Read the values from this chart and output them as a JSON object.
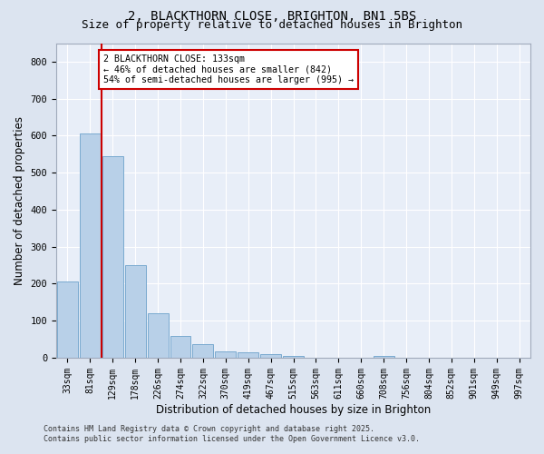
{
  "title1": "2, BLACKTHORN CLOSE, BRIGHTON, BN1 5BS",
  "title2": "Size of property relative to detached houses in Brighton",
  "xlabel": "Distribution of detached houses by size in Brighton",
  "ylabel": "Number of detached properties",
  "categories": [
    "33sqm",
    "81sqm",
    "129sqm",
    "178sqm",
    "226sqm",
    "274sqm",
    "322sqm",
    "370sqm",
    "419sqm",
    "467sqm",
    "515sqm",
    "563sqm",
    "611sqm",
    "660sqm",
    "708sqm",
    "756sqm",
    "804sqm",
    "852sqm",
    "901sqm",
    "949sqm",
    "997sqm"
  ],
  "values": [
    205,
    605,
    545,
    250,
    120,
    60,
    37,
    17,
    15,
    10,
    5,
    1,
    0,
    0,
    5,
    0,
    0,
    0,
    0,
    0,
    0
  ],
  "bar_color": "#b8d0e8",
  "bar_edge_color": "#7aaad0",
  "vline_x": 1.5,
  "vline_color": "#cc0000",
  "annotation_text": "2 BLACKTHORN CLOSE: 133sqm\n← 46% of detached houses are smaller (842)\n54% of semi-detached houses are larger (995) →",
  "annotation_box_color": "#ffffff",
  "annotation_box_edge_color": "#cc0000",
  "ylim": [
    0,
    850
  ],
  "yticks": [
    0,
    100,
    200,
    300,
    400,
    500,
    600,
    700,
    800
  ],
  "bg_color": "#dce4f0",
  "plot_bg_color": "#e8eef8",
  "grid_color": "#ffffff",
  "title1_fontsize": 10,
  "title2_fontsize": 9,
  "tick_fontsize": 7,
  "label_fontsize": 8.5,
  "footer1": "Contains HM Land Registry data © Crown copyright and database right 2025.",
  "footer2": "Contains public sector information licensed under the Open Government Licence v3.0."
}
